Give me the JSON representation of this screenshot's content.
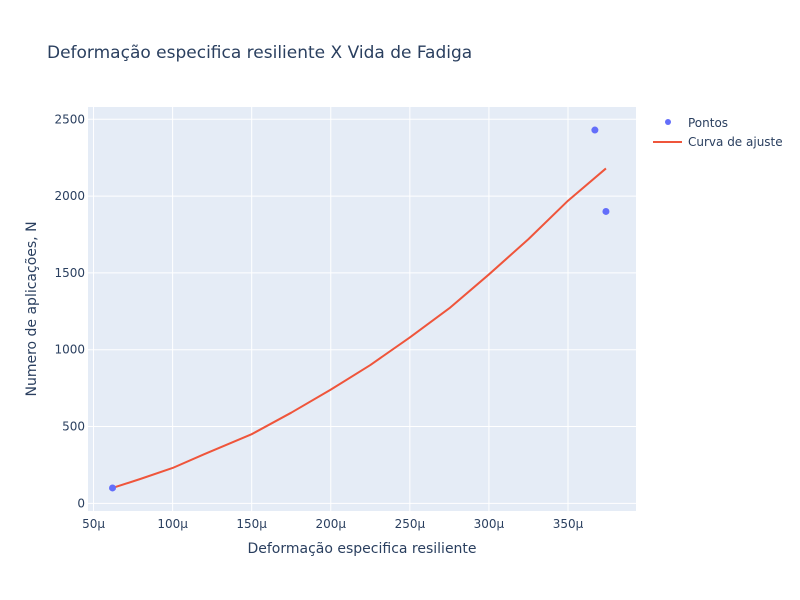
{
  "colors": {
    "plot_bg": "#e5ecf6",
    "grid": "#ffffff",
    "points": "#636efa",
    "fit_line": "#ef553b",
    "text": "#2a3f5f"
  },
  "chart_data": {
    "type": "scatter",
    "title": "Deformação especifica resiliente X Vida de Fadiga",
    "xlabel": "Deformação especifica resiliente",
    "ylabel": "Numero de aplicações, N",
    "xlim": [
      4.65e-05,
      0.000393
    ],
    "ylim": [
      -50,
      2580
    ],
    "grid": true,
    "legend_position": "top-right",
    "x_ticks": [
      {
        "value": 5e-05,
        "label": "50μ"
      },
      {
        "value": 0.0001,
        "label": "100μ"
      },
      {
        "value": 0.00015,
        "label": "150μ"
      },
      {
        "value": 0.0002,
        "label": "200μ"
      },
      {
        "value": 0.00025,
        "label": "250μ"
      },
      {
        "value": 0.0003,
        "label": "300μ"
      },
      {
        "value": 0.00035,
        "label": "350μ"
      }
    ],
    "y_ticks": [
      {
        "value": 0,
        "label": "0"
      },
      {
        "value": 500,
        "label": "500"
      },
      {
        "value": 1000,
        "label": "1000"
      },
      {
        "value": 1500,
        "label": "1500"
      },
      {
        "value": 2000,
        "label": "2000"
      },
      {
        "value": 2500,
        "label": "2500"
      }
    ],
    "series": [
      {
        "name": "Pontos",
        "mode": "markers",
        "x": [
          6.2e-05,
          0.000367,
          0.000374
        ],
        "y": [
          100,
          2430,
          1900
        ]
      },
      {
        "name": "Curva de ajuste",
        "mode": "lines",
        "x": [
          6.2e-05,
          8e-05,
          0.0001,
          0.00012,
          0.00015,
          0.000175,
          0.0002,
          0.000225,
          0.00025,
          0.000275,
          0.0003,
          0.000325,
          0.00035,
          0.000374
        ],
        "y": [
          100,
          160,
          230,
          320,
          450,
          590,
          740,
          900,
          1080,
          1270,
          1490,
          1720,
          1970,
          2180
        ]
      }
    ]
  }
}
